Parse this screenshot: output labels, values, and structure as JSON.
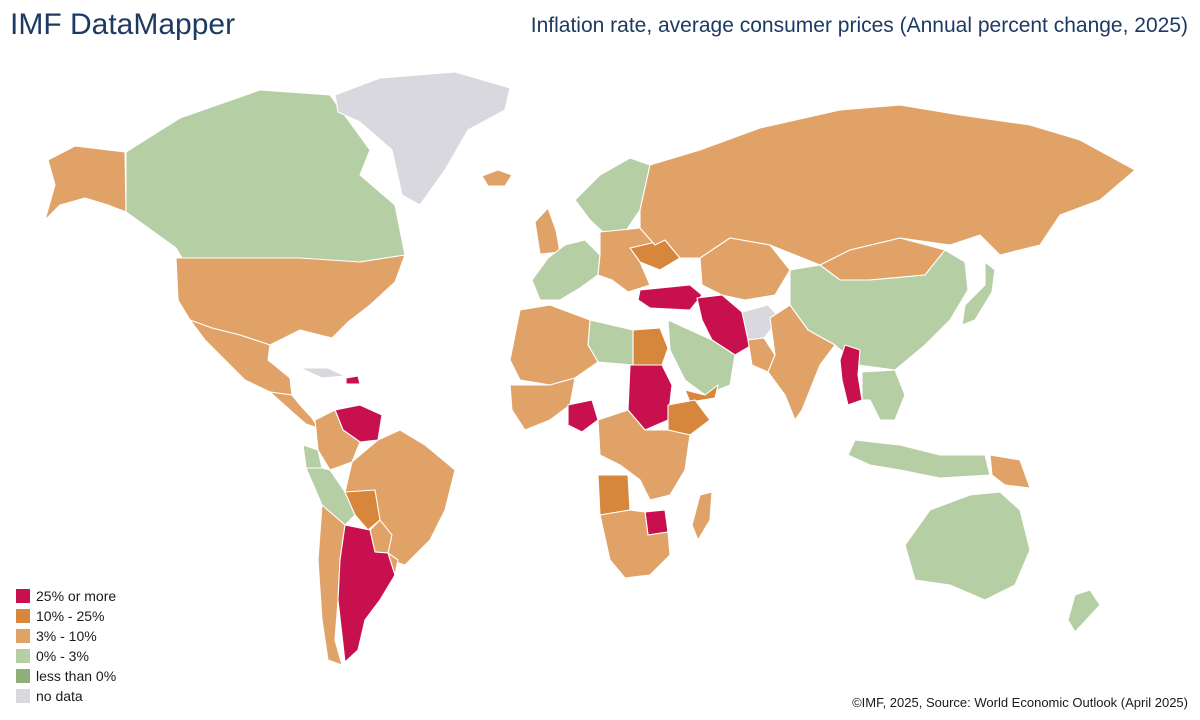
{
  "header": {
    "brand": "IMF DataMapper",
    "title": "Inflation rate, average consumer prices (Annual percent change, 2025)"
  },
  "legend": [
    {
      "label": "25% or more",
      "color": "#c8104e"
    },
    {
      "label": "10% - 25%",
      "color": "#d7873b"
    },
    {
      "label": "3% - 10%",
      "color": "#e0a266"
    },
    {
      "label": "0% - 3%",
      "color": "#b5cea4"
    },
    {
      "label": "less than 0%",
      "color": "#8fae78"
    },
    {
      "label": "no data",
      "color": "#d8d8de"
    }
  ],
  "map_regions": [
    {
      "name": "Alaska",
      "category": "3% - 10%"
    },
    {
      "name": "Canada",
      "category": "0% - 3%"
    },
    {
      "name": "Greenland",
      "category": "no data"
    },
    {
      "name": "United States",
      "category": "3% - 10%"
    },
    {
      "name": "Mexico",
      "category": "3% - 10%"
    },
    {
      "name": "Central America",
      "category": "3% - 10%"
    },
    {
      "name": "Cuba",
      "category": "no data"
    },
    {
      "name": "Haiti",
      "category": "25% or more"
    },
    {
      "name": "Venezuela",
      "category": "25% or more"
    },
    {
      "name": "Colombia",
      "category": "3% - 10%"
    },
    {
      "name": "Ecuador",
      "category": "0% - 3%"
    },
    {
      "name": "Peru",
      "category": "0% - 3%"
    },
    {
      "name": "Brazil",
      "category": "3% - 10%"
    },
    {
      "name": "Bolivia",
      "category": "10% - 25%"
    },
    {
      "name": "Paraguay",
      "category": "3% - 10%"
    },
    {
      "name": "Chile",
      "category": "3% - 10%"
    },
    {
      "name": "Argentina",
      "category": "25% or more"
    },
    {
      "name": "Uruguay",
      "category": "3% - 10%"
    },
    {
      "name": "Iceland",
      "category": "3% - 10%"
    },
    {
      "name": "United Kingdom",
      "category": "3% - 10%"
    },
    {
      "name": "Western Europe",
      "category": "0% - 3%"
    },
    {
      "name": "Scandinavia",
      "category": "0% - 3%"
    },
    {
      "name": "Eastern Europe",
      "category": "3% - 10%"
    },
    {
      "name": "Ukraine",
      "category": "10% - 25%"
    },
    {
      "name": "Russia",
      "category": "3% - 10%"
    },
    {
      "name": "Turkey",
      "category": "25% or more"
    },
    {
      "name": "Iran",
      "category": "25% or more"
    },
    {
      "name": "Central Asia",
      "category": "3% - 10%"
    },
    {
      "name": "Mongolia",
      "category": "3% - 10%"
    },
    {
      "name": "China",
      "category": "0% - 3%"
    },
    {
      "name": "Japan",
      "category": "0% - 3%"
    },
    {
      "name": "Afghanistan",
      "category": "no data"
    },
    {
      "name": "Pakistan",
      "category": "3% - 10%"
    },
    {
      "name": "India",
      "category": "3% - 10%"
    },
    {
      "name": "Myanmar",
      "category": "25% or more"
    },
    {
      "name": "Southeast Asia",
      "category": "0% - 3%"
    },
    {
      "name": "Indonesia",
      "category": "0% - 3%"
    },
    {
      "name": "Papua New Guinea",
      "category": "3% - 10%"
    },
    {
      "name": "Australia",
      "category": "0% - 3%"
    },
    {
      "name": "New Zealand",
      "category": "0% - 3%"
    },
    {
      "name": "Saudi Arabia",
      "category": "0% - 3%"
    },
    {
      "name": "Yemen",
      "category": "10% - 25%"
    },
    {
      "name": "Egypt",
      "category": "10% - 25%"
    },
    {
      "name": "Libya",
      "category": "0% - 3%"
    },
    {
      "name": "North Africa",
      "category": "3% - 10%"
    },
    {
      "name": "West Africa",
      "category": "3% - 10%"
    },
    {
      "name": "Nigeria",
      "category": "25% or more"
    },
    {
      "name": "Sudan",
      "category": "25% or more"
    },
    {
      "name": "Ethiopia",
      "category": "10% - 25%"
    },
    {
      "name": "Central Africa",
      "category": "3% - 10%"
    },
    {
      "name": "Angola",
      "category": "10% - 25%"
    },
    {
      "name": "Zimbabwe",
      "category": "25% or more"
    },
    {
      "name": "Southern Africa",
      "category": "3% - 10%"
    },
    {
      "name": "Madagascar",
      "category": "3% - 10%"
    }
  ],
  "footer": {
    "source": "©IMF, 2025, Source: World Economic Outlook (April 2025)"
  }
}
